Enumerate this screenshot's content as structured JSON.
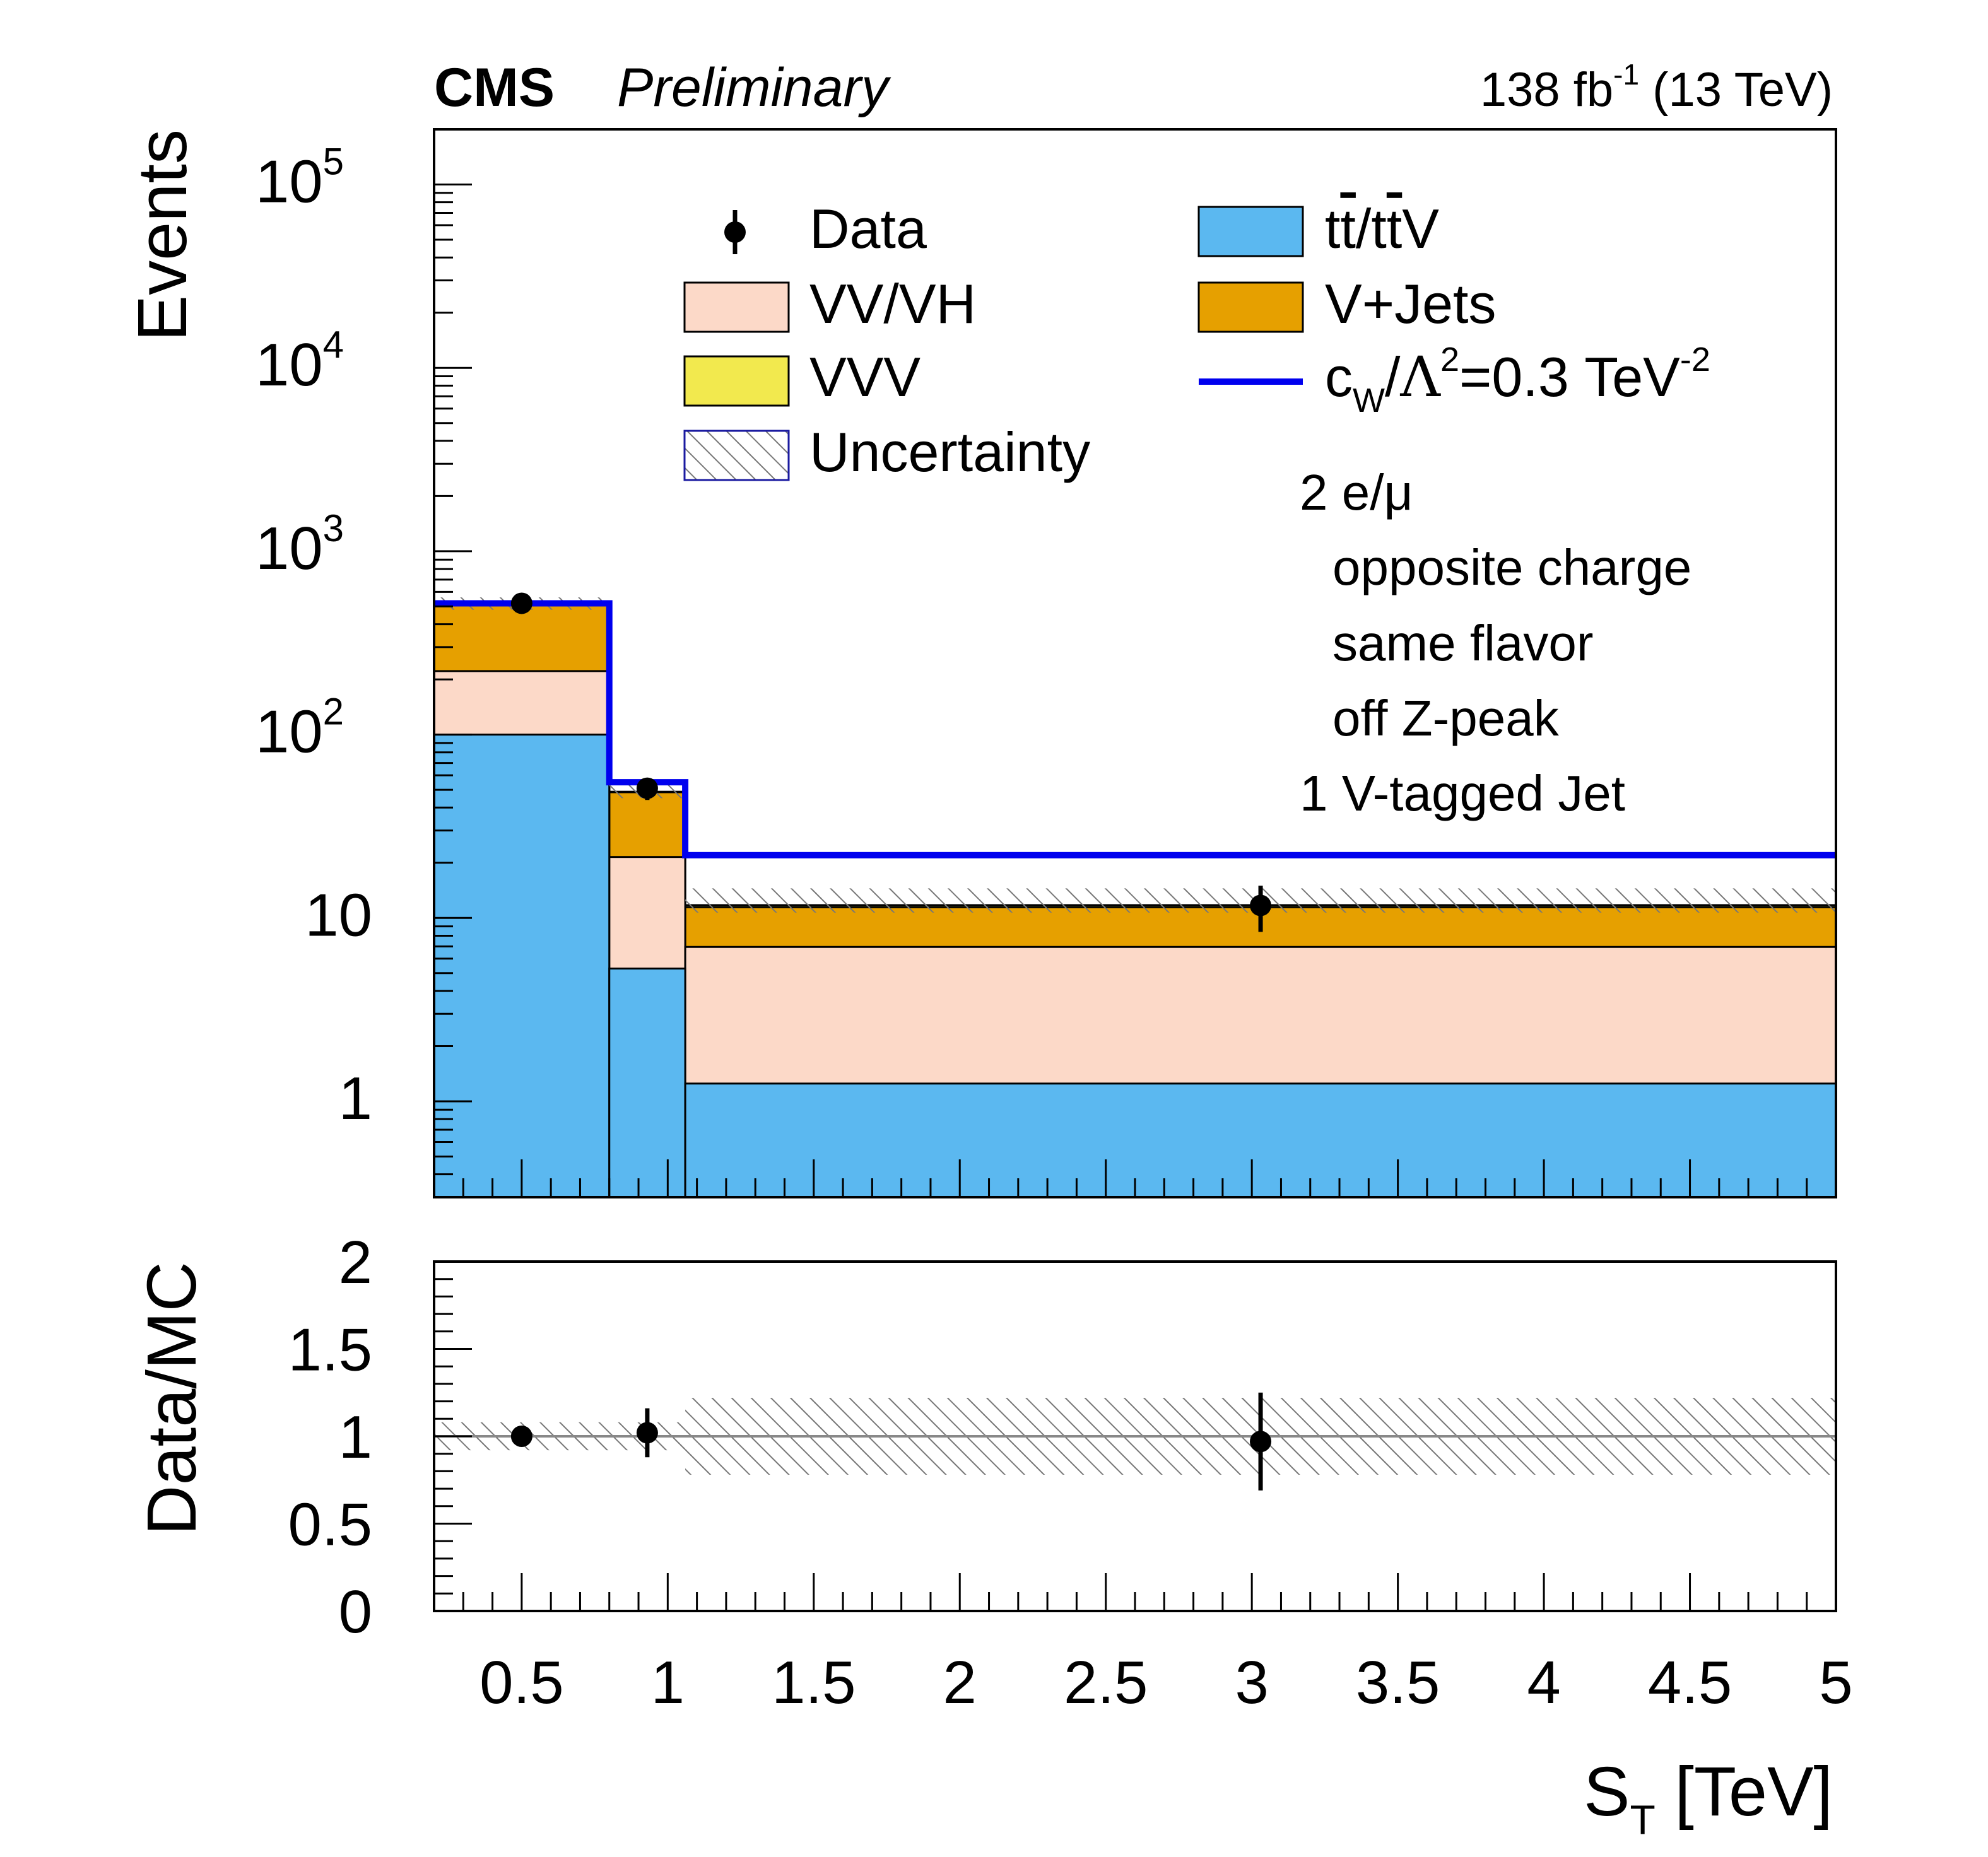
{
  "chart_data": {
    "type": "bar",
    "experiment": "CMS",
    "status": "Preliminary",
    "lumi_label": "138 fb",
    "lumi_sup": "-1",
    "energy_label": " (13 TeV)",
    "xlabel": "S",
    "xlabel_sub": "T",
    "xlabel_unit": " [TeV]",
    "ylabel_top": "Events",
    "ylabel_bottom": "Data/MC",
    "bin_edges": [
      0.2,
      0.8,
      1.06,
      5.0
    ],
    "xlim": [
      0.2,
      5.0
    ],
    "ylim_top": [
      0.3,
      200000
    ],
    "ylim_bottom": [
      0,
      2
    ],
    "x_ticks": [
      "0.5",
      "1",
      "1.5",
      "2",
      "2.5",
      "3",
      "3.5",
      "4",
      "4.5",
      "5"
    ],
    "y_ticks_top": [
      {
        "value": 1,
        "base": "1",
        "exp": ""
      },
      {
        "value": 10,
        "base": "10",
        "exp": ""
      },
      {
        "value": 100,
        "base": "10",
        "exp": "2"
      },
      {
        "value": 1000,
        "base": "10",
        "exp": "3"
      },
      {
        "value": 10000,
        "base": "10",
        "exp": "4"
      },
      {
        "value": 100000,
        "base": "10",
        "exp": "5"
      }
    ],
    "y_ticks_bottom": [
      "0",
      "0.5",
      "1",
      "1.5",
      "2"
    ],
    "stack": [
      {
        "name": "tt/ttV",
        "color": "#5bb8f0",
        "values": [
          100,
          5.3,
          1.25
        ]
      },
      {
        "name": "VV/VH",
        "color": "#fcd9c8",
        "values": [
          122,
          16.2,
          5.7
        ]
      },
      {
        "name": "V+Jets",
        "color": "#e6a000",
        "values": [
          305,
          27,
          4.5
        ]
      },
      {
        "name": "VVV",
        "color": "#f2e94e",
        "values": [
          1,
          0.3,
          0.3
        ]
      }
    ],
    "uncertainty_band": {
      "low": [
        480,
        45,
        10.7
      ],
      "high": [
        560,
        55,
        14.5
      ]
    },
    "signal": {
      "name": "cW/Λ2=0.3 TeV-2",
      "color": "#0000ee",
      "values": [
        520,
        55,
        22
      ]
    },
    "data_points": [
      {
        "x": 0.5,
        "y": 520,
        "err_low": 22,
        "err_high": 22
      },
      {
        "x": 0.93,
        "y": 51,
        "err_low": 7,
        "err_high": 7
      },
      {
        "x": 3.03,
        "y": 11.7,
        "err_low": 3.3,
        "err_high": 3.3
      }
    ],
    "ratio_points": [
      {
        "x": 0.5,
        "y": 1.0,
        "err_low": 0.04,
        "err_high": 0.04
      },
      {
        "x": 0.93,
        "y": 1.02,
        "err_low": 0.14,
        "err_high": 0.14
      },
      {
        "x": 3.03,
        "y": 0.97,
        "err_low": 0.28,
        "err_high": 0.28
      }
    ],
    "ratio_band": {
      "low": [
        0.92,
        0.92,
        0.78
      ],
      "high": [
        1.08,
        1.08,
        1.22
      ]
    },
    "legend": {
      "placement": "top-right",
      "data": "Data",
      "vvvh": "VV/VH",
      "vvv": "VVV",
      "uncertainty": "Uncertainty",
      "tt_a": "t",
      "tt_b": "t",
      "tt_sep": "/",
      "tt_c": "t",
      "tt_d": "t",
      "tt_v": "V",
      "vjets": "V+Jets",
      "sig_c": "c",
      "sig_w": "W",
      "sig_slash": "/",
      "sig_lambda": "Λ",
      "sig_sq": "2",
      "sig_rest": "=0.3 TeV",
      "sig_exp": "-2"
    },
    "annotations": [
      "2 e/μ",
      "opposite charge",
      "same flavor",
      "off Z-peak",
      "1 V-tagged Jet"
    ]
  }
}
